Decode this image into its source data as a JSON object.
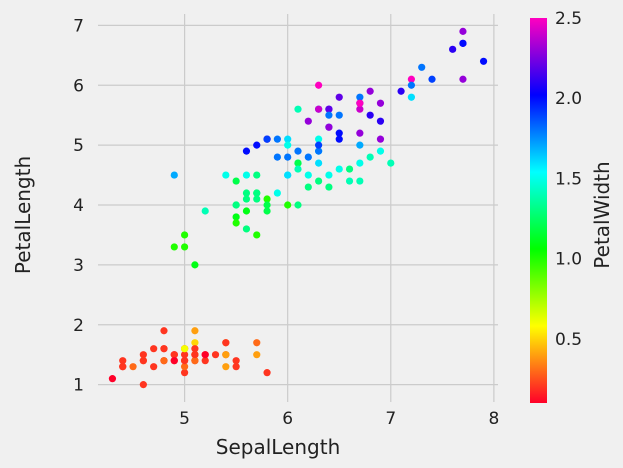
{
  "chart_data": {
    "type": "scatter",
    "xlabel": "SepalLength",
    "ylabel": "PetalLength",
    "colorbar_label": "PetalWidth",
    "xlim": [
      4.16,
      8.04
    ],
    "ylim": [
      0.71,
      7.19
    ],
    "xticks": [
      5,
      6,
      7,
      8
    ],
    "yticks": [
      1,
      2,
      3,
      4,
      5,
      6,
      7
    ],
    "color_range": [
      0.1,
      2.5
    ],
    "colorbar_ticks": [
      0.5,
      1.0,
      1.5,
      2.0,
      2.5
    ],
    "colormap": "gist_rainbow",
    "grid": true,
    "points": [
      [
        5.1,
        1.4,
        0.2
      ],
      [
        4.9,
        1.4,
        0.2
      ],
      [
        4.7,
        1.3,
        0.2
      ],
      [
        4.6,
        1.5,
        0.2
      ],
      [
        5.0,
        1.4,
        0.2
      ],
      [
        5.4,
        1.7,
        0.4
      ],
      [
        4.6,
        1.4,
        0.3
      ],
      [
        5.0,
        1.5,
        0.2
      ],
      [
        4.4,
        1.4,
        0.2
      ],
      [
        4.9,
        1.5,
        0.1
      ],
      [
        5.4,
        1.5,
        0.2
      ],
      [
        4.8,
        1.6,
        0.2
      ],
      [
        4.8,
        1.4,
        0.1
      ],
      [
        4.3,
        1.1,
        0.1
      ],
      [
        5.8,
        1.2,
        0.2
      ],
      [
        5.7,
        1.5,
        0.4
      ],
      [
        5.4,
        1.3,
        0.4
      ],
      [
        5.1,
        1.4,
        0.3
      ],
      [
        5.7,
        1.7,
        0.3
      ],
      [
        5.1,
        1.5,
        0.3
      ],
      [
        5.4,
        1.7,
        0.2
      ],
      [
        5.1,
        1.5,
        0.4
      ],
      [
        4.6,
        1.0,
        0.2
      ],
      [
        5.1,
        1.7,
        0.5
      ],
      [
        4.8,
        1.9,
        0.2
      ],
      [
        5.0,
        1.6,
        0.2
      ],
      [
        5.0,
        1.6,
        0.4
      ],
      [
        5.2,
        1.5,
        0.2
      ],
      [
        5.2,
        1.4,
        0.2
      ],
      [
        4.7,
        1.6,
        0.2
      ],
      [
        4.8,
        1.6,
        0.2
      ],
      [
        5.4,
        1.5,
        0.4
      ],
      [
        5.2,
        1.5,
        0.1
      ],
      [
        5.5,
        1.4,
        0.2
      ],
      [
        4.9,
        1.5,
        0.2
      ],
      [
        5.0,
        1.2,
        0.2
      ],
      [
        5.5,
        1.3,
        0.2
      ],
      [
        4.9,
        1.4,
        0.1
      ],
      [
        4.4,
        1.3,
        0.2
      ],
      [
        5.1,
        1.5,
        0.2
      ],
      [
        5.0,
        1.3,
        0.3
      ],
      [
        4.5,
        1.3,
        0.3
      ],
      [
        4.4,
        1.3,
        0.2
      ],
      [
        5.0,
        1.6,
        0.6
      ],
      [
        5.1,
        1.9,
        0.4
      ],
      [
        4.8,
        1.4,
        0.3
      ],
      [
        5.1,
        1.6,
        0.2
      ],
      [
        4.6,
        1.4,
        0.2
      ],
      [
        5.3,
        1.5,
        0.2
      ],
      [
        5.0,
        1.4,
        0.2
      ],
      [
        7.0,
        4.7,
        1.4
      ],
      [
        6.4,
        4.5,
        1.5
      ],
      [
        6.9,
        4.9,
        1.5
      ],
      [
        5.5,
        4.0,
        1.3
      ],
      [
        6.5,
        4.6,
        1.5
      ],
      [
        5.7,
        4.5,
        1.3
      ],
      [
        6.3,
        4.7,
        1.6
      ],
      [
        4.9,
        3.3,
        1.0
      ],
      [
        6.6,
        4.6,
        1.3
      ],
      [
        5.2,
        3.9,
        1.4
      ],
      [
        5.0,
        3.5,
        1.0
      ],
      [
        5.9,
        4.2,
        1.5
      ],
      [
        6.0,
        4.0,
        1.0
      ],
      [
        6.1,
        4.7,
        1.4
      ],
      [
        5.6,
        3.6,
        1.3
      ],
      [
        6.7,
        4.4,
        1.4
      ],
      [
        5.6,
        4.5,
        1.5
      ],
      [
        5.8,
        4.1,
        1.0
      ],
      [
        6.2,
        4.5,
        1.5
      ],
      [
        5.6,
        3.9,
        1.1
      ],
      [
        5.9,
        4.8,
        1.8
      ],
      [
        6.1,
        4.0,
        1.3
      ],
      [
        6.3,
        4.9,
        1.5
      ],
      [
        6.1,
        4.7,
        1.2
      ],
      [
        6.4,
        4.3,
        1.3
      ],
      [
        6.6,
        4.4,
        1.4
      ],
      [
        6.8,
        4.8,
        1.4
      ],
      [
        6.7,
        5.0,
        1.7
      ],
      [
        6.0,
        4.5,
        1.5
      ],
      [
        5.7,
        3.5,
        1.0
      ],
      [
        5.5,
        3.8,
        1.1
      ],
      [
        5.5,
        3.7,
        1.0
      ],
      [
        5.8,
        3.9,
        1.2
      ],
      [
        6.0,
        5.1,
        1.6
      ],
      [
        5.4,
        4.5,
        1.5
      ],
      [
        6.0,
        4.5,
        1.6
      ],
      [
        6.7,
        4.7,
        1.5
      ],
      [
        6.3,
        4.4,
        1.3
      ],
      [
        5.6,
        4.1,
        1.3
      ],
      [
        5.5,
        4.0,
        1.3
      ],
      [
        5.5,
        4.4,
        1.2
      ],
      [
        6.1,
        4.6,
        1.4
      ],
      [
        5.8,
        4.0,
        1.2
      ],
      [
        5.0,
        3.3,
        1.0
      ],
      [
        5.6,
        4.2,
        1.3
      ],
      [
        5.7,
        4.2,
        1.2
      ],
      [
        5.7,
        4.2,
        1.3
      ],
      [
        6.2,
        4.3,
        1.3
      ],
      [
        5.1,
        3.0,
        1.1
      ],
      [
        5.7,
        4.1,
        1.3
      ],
      [
        6.3,
        6.0,
        2.5
      ],
      [
        5.8,
        5.1,
        1.9
      ],
      [
        7.1,
        5.9,
        2.1
      ],
      [
        6.3,
        5.6,
        1.8
      ],
      [
        6.5,
        5.8,
        2.2
      ],
      [
        7.6,
        6.6,
        2.1
      ],
      [
        4.9,
        4.5,
        1.7
      ],
      [
        7.3,
        6.3,
        1.8
      ],
      [
        6.7,
        5.8,
        1.8
      ],
      [
        7.2,
        6.1,
        2.5
      ],
      [
        6.5,
        5.1,
        2.0
      ],
      [
        6.4,
        5.3,
        1.9
      ],
      [
        6.8,
        5.5,
        2.1
      ],
      [
        5.7,
        5.0,
        2.0
      ],
      [
        5.8,
        5.1,
        2.4
      ],
      [
        6.4,
        5.3,
        2.3
      ],
      [
        6.5,
        5.5,
        1.8
      ],
      [
        7.7,
        6.7,
        2.2
      ],
      [
        7.7,
        6.9,
        2.3
      ],
      [
        6.0,
        5.0,
        1.5
      ],
      [
        6.9,
        5.7,
        2.3
      ],
      [
        5.6,
        4.9,
        2.0
      ],
      [
        7.7,
        6.7,
        2.0
      ],
      [
        6.3,
        4.9,
        1.8
      ],
      [
        6.7,
        5.7,
        2.1
      ],
      [
        7.2,
        6.0,
        1.8
      ],
      [
        6.2,
        4.8,
        1.8
      ],
      [
        6.1,
        4.9,
        1.8
      ],
      [
        6.4,
        5.6,
        2.1
      ],
      [
        7.2,
        5.8,
        1.6
      ],
      [
        7.4,
        6.1,
        1.9
      ],
      [
        7.9,
        6.4,
        2.0
      ],
      [
        6.4,
        5.6,
        2.2
      ],
      [
        6.3,
        5.1,
        1.5
      ],
      [
        6.1,
        5.6,
        1.4
      ],
      [
        7.7,
        6.1,
        2.3
      ],
      [
        6.3,
        5.6,
        2.4
      ],
      [
        6.4,
        5.5,
        1.8
      ],
      [
        6.0,
        4.8,
        1.8
      ],
      [
        6.9,
        5.4,
        2.1
      ],
      [
        6.7,
        5.6,
        2.4
      ],
      [
        6.9,
        5.1,
        2.3
      ],
      [
        5.8,
        5.1,
        1.9
      ],
      [
        6.8,
        5.9,
        2.3
      ],
      [
        6.7,
        5.7,
        2.5
      ],
      [
        6.7,
        5.2,
        2.3
      ],
      [
        6.3,
        5.0,
        1.9
      ],
      [
        6.5,
        5.2,
        2.0
      ],
      [
        6.2,
        5.4,
        2.3
      ],
      [
        5.9,
        5.1,
        1.8
      ]
    ]
  }
}
